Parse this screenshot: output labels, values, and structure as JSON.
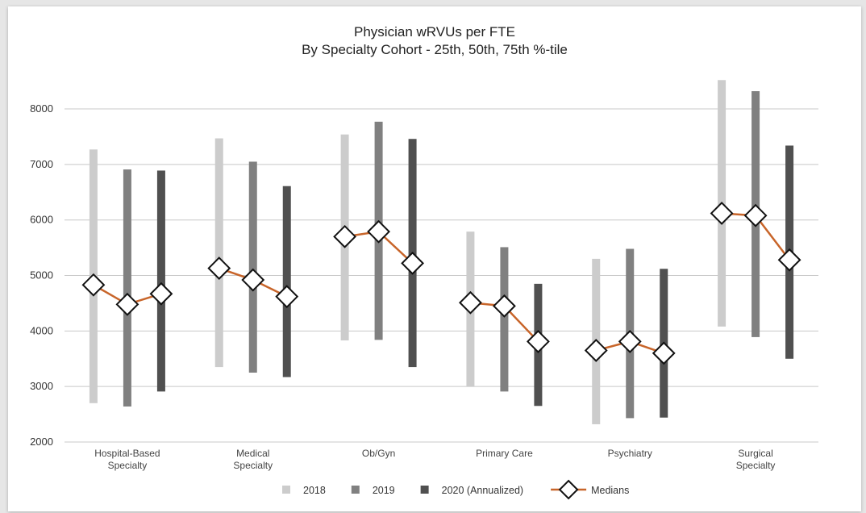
{
  "chart_data": {
    "type": "bar",
    "title": "Physician wRVUs per FTE",
    "subtitle": "By Specialty Cohort - 25th, 50th, 75th %-tile",
    "categories": [
      [
        "Hospital-Based",
        "Specialty"
      ],
      [
        "Medical",
        "Specialty"
      ],
      [
        "Ob/Gyn"
      ],
      [
        "Primary Care"
      ],
      [
        "Psychiatry"
      ],
      [
        "Surgical",
        "Specialty"
      ]
    ],
    "ylim": [
      2000,
      8800
    ],
    "yticks": [
      2000,
      3000,
      4000,
      5000,
      6000,
      7000,
      8000
    ],
    "grid": true,
    "legend_position": "bottom",
    "series": [
      {
        "name": "2018",
        "color": "#cccccc",
        "low": [
          2700,
          3350,
          3830,
          3000,
          2320,
          4080
        ],
        "high": [
          7270,
          7470,
          7540,
          5790,
          5300,
          8520
        ],
        "median": [
          4830,
          5130,
          5700,
          4510,
          3650,
          6120
        ]
      },
      {
        "name": "2019",
        "color": "#808080",
        "low": [
          2640,
          3250,
          3840,
          2910,
          2430,
          3890
        ],
        "high": [
          6910,
          7050,
          7770,
          5510,
          5480,
          8320
        ],
        "median": [
          4480,
          4920,
          5790,
          4450,
          3810,
          6080
        ]
      },
      {
        "name": "2020 (Annualized)",
        "color": "#505050",
        "low": [
          2910,
          3170,
          3350,
          2650,
          2440,
          3500
        ],
        "high": [
          6890,
          6610,
          7460,
          4850,
          5120,
          7340
        ],
        "median": [
          4670,
          4620,
          5220,
          3810,
          3600,
          5280
        ]
      }
    ],
    "median_series": {
      "name": "Medians",
      "line_color": "#c8652a"
    }
  }
}
